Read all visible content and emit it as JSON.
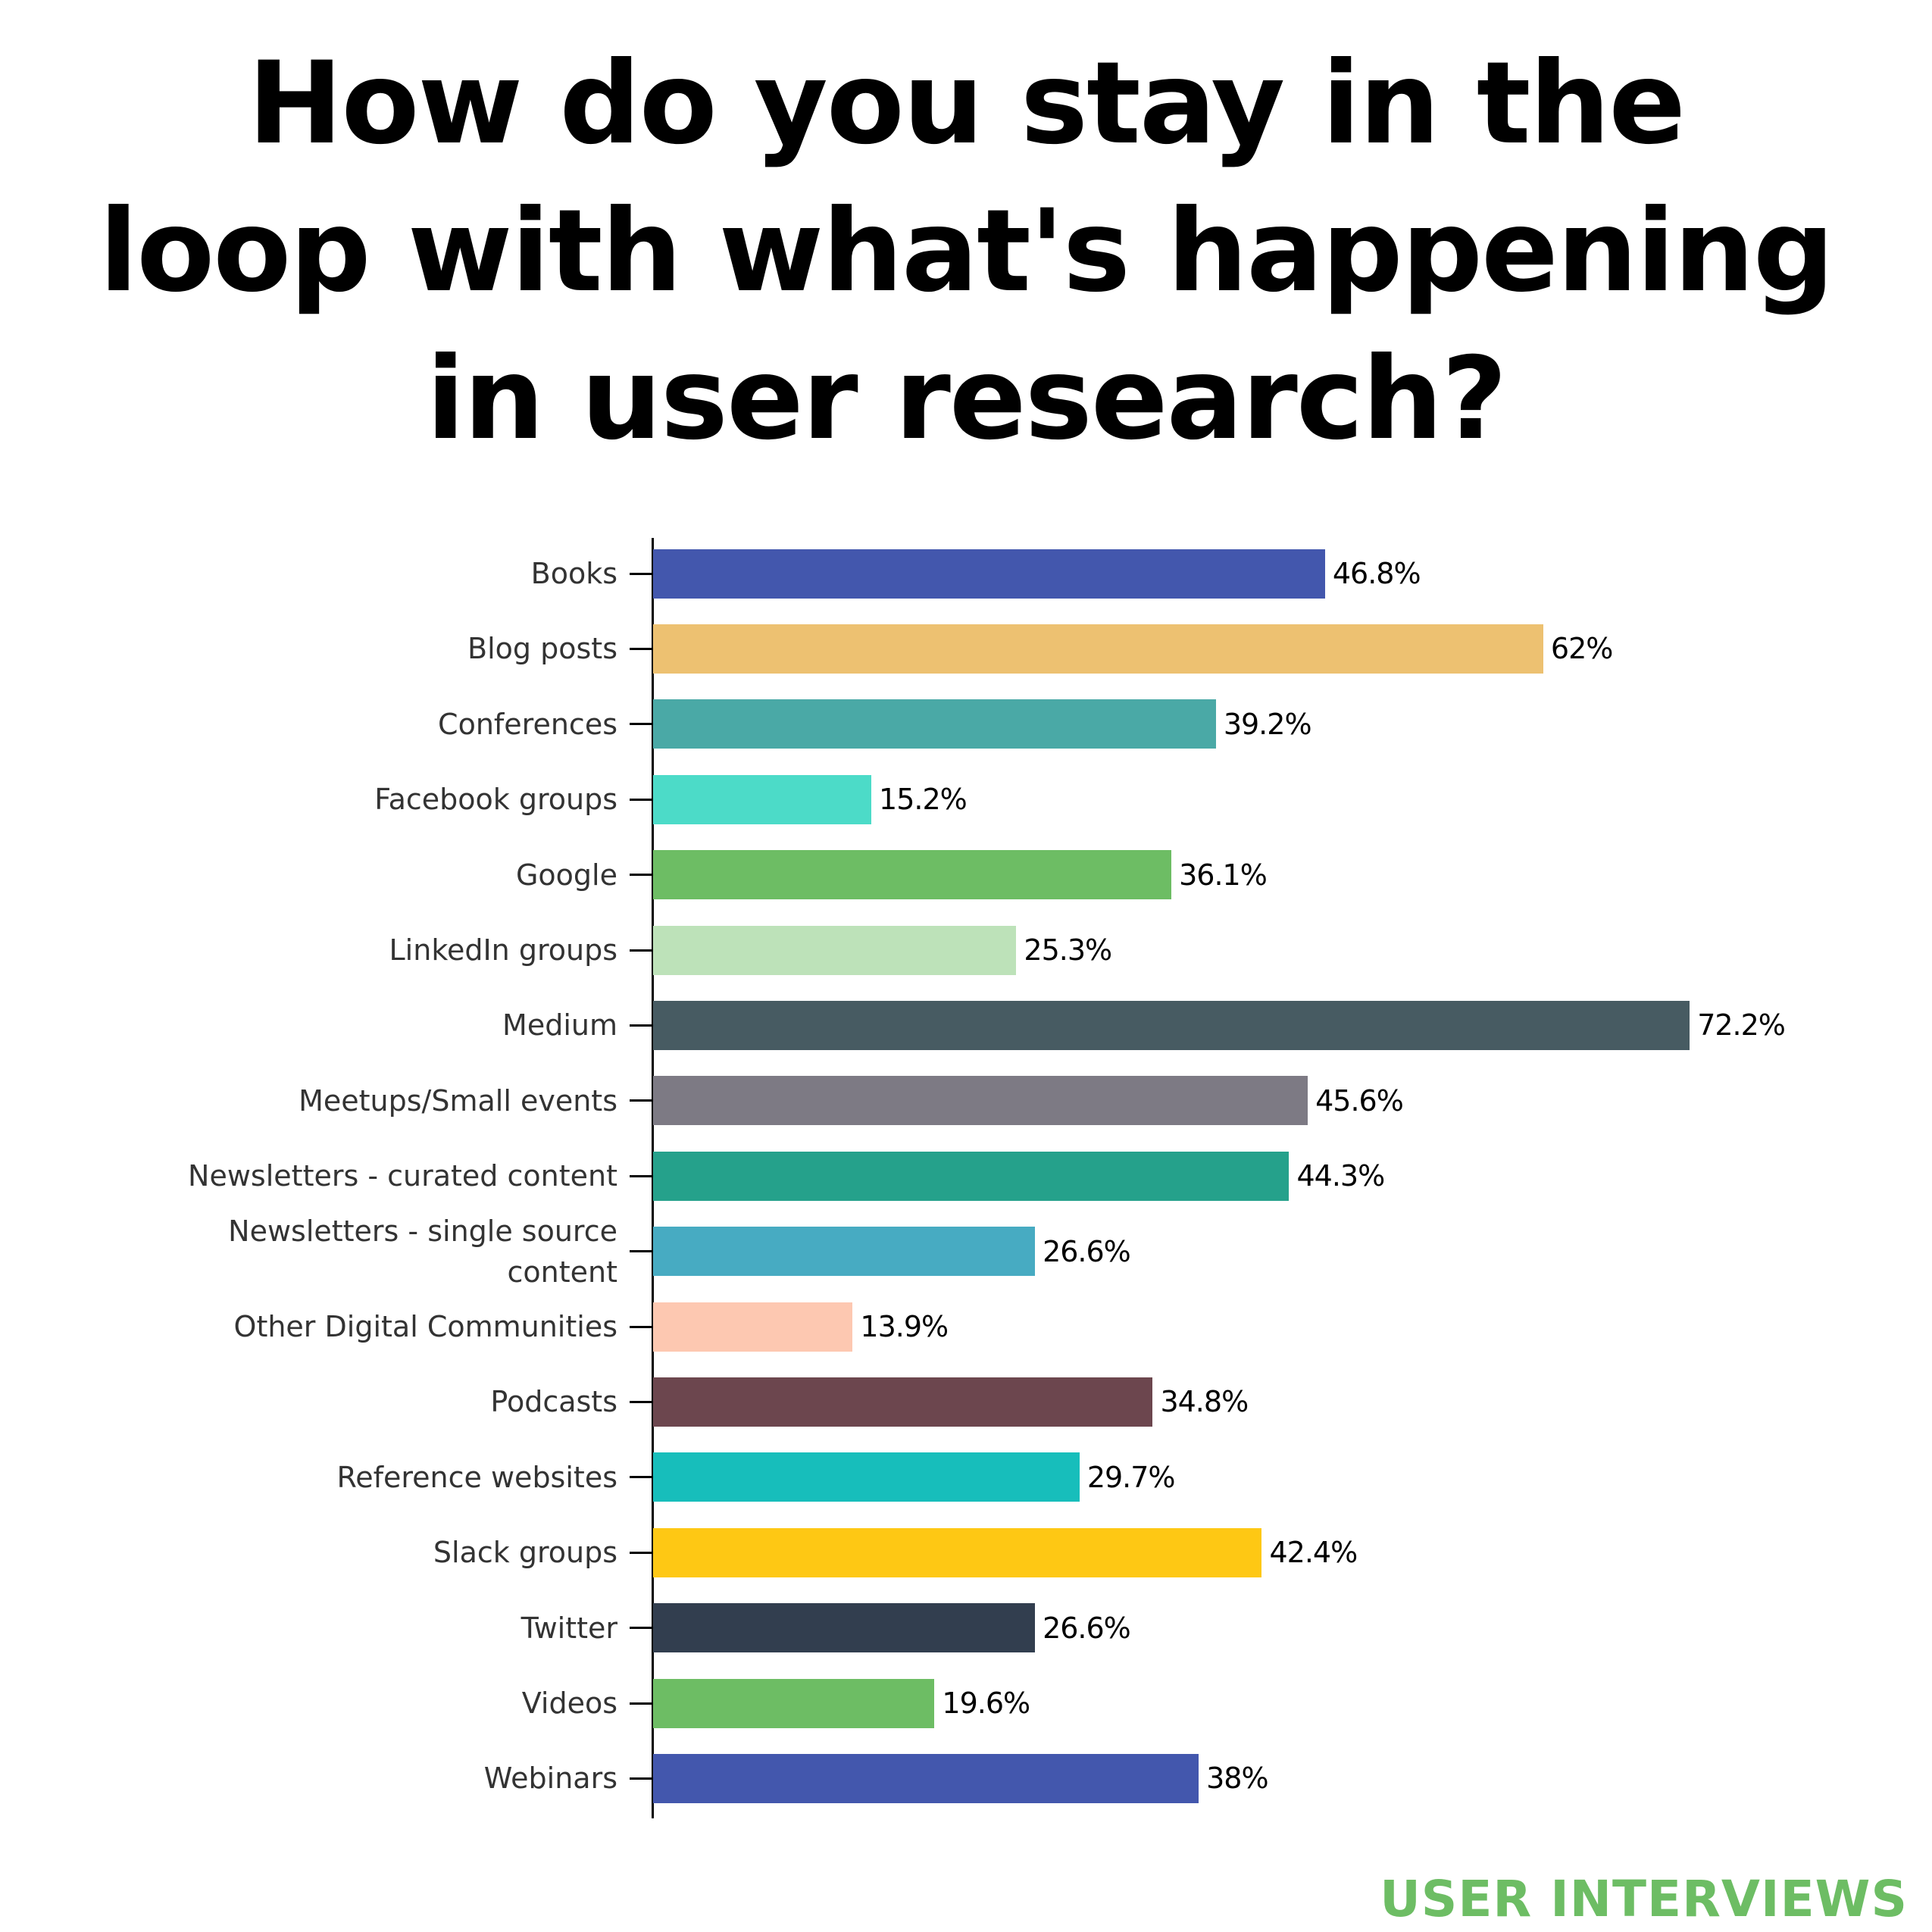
{
  "title": {
    "lines": [
      "How do you stay in the",
      "loop with what's happening",
      "in user research?"
    ]
  },
  "brand": "USER INTERVIEWS",
  "chart_data": {
    "type": "bar",
    "orientation": "horizontal",
    "title": "How do you stay in the loop with what's happening in user research?",
    "xlabel": "",
    "ylabel": "",
    "grid": false,
    "legend": null,
    "categories": [
      "Books",
      "Blog posts",
      "Conferences",
      "Facebook groups",
      "Google",
      "LinkedIn groups",
      "Medium",
      "Meetups/Small events",
      "Newsletters - curated content",
      "Newsletters - single source content",
      "Other Digital Communities",
      "Podcasts",
      "Reference websites",
      "Slack groups",
      "Twitter",
      "Videos",
      "Webinars"
    ],
    "values": [
      46.8,
      62,
      39.2,
      15.2,
      36.1,
      25.3,
      72.2,
      45.6,
      44.3,
      26.6,
      13.9,
      34.8,
      29.7,
      42.4,
      26.6,
      19.6,
      38
    ],
    "value_labels": [
      "46.8%",
      "62%",
      "39.2%",
      "15.2%",
      "36.1%",
      "25.3%",
      "72.2%",
      "45.6%",
      "44.3%",
      "26.6%",
      "13.9%",
      "34.8%",
      "29.7%",
      "42.4%",
      "26.6%",
      "19.6%",
      "38%"
    ],
    "colors": [
      "#4357ad",
      "#edc171",
      "#4aa9a6",
      "#4cdbc8",
      "#6dbd64",
      "#bde2b9",
      "#475b62",
      "#7d7a84",
      "#25a18b",
      "#47abc2",
      "#fdc8b1",
      "#6c464e",
      "#17bebb",
      "#fec814",
      "#323e4f",
      "#6dbd64",
      "#4357ad"
    ],
    "unit": "%"
  },
  "rows": [
    {
      "label": "Books",
      "value": 46.8,
      "display": "46.8%",
      "color": "#4357ad"
    },
    {
      "label": "Blog posts",
      "value": 62,
      "display": "62%",
      "color": "#edc171"
    },
    {
      "label": "Conferences",
      "value": 39.2,
      "display": "39.2%",
      "color": "#4aa9a6"
    },
    {
      "label": "Facebook groups",
      "value": 15.2,
      "display": "15.2%",
      "color": "#4cdbc8"
    },
    {
      "label": "Google",
      "value": 36.1,
      "display": "36.1%",
      "color": "#6dbd64"
    },
    {
      "label": "LinkedIn groups",
      "value": 25.3,
      "display": "25.3%",
      "color": "#bde2b9"
    },
    {
      "label": "Medium",
      "value": 72.2,
      "display": "72.2%",
      "color": "#475b62"
    },
    {
      "label": "Meetups/Small events",
      "value": 45.6,
      "display": "45.6%",
      "color": "#7d7a84"
    },
    {
      "label": "Newsletters - curated content",
      "value": 44.3,
      "display": "44.3%",
      "color": "#25a18b"
    },
    {
      "label": "Newsletters - single source\ncontent",
      "value": 26.6,
      "display": "26.6%",
      "color": "#47abc2"
    },
    {
      "label": "Other Digital Communities",
      "value": 13.9,
      "display": "13.9%",
      "color": "#fdc8b1"
    },
    {
      "label": "Podcasts",
      "value": 34.8,
      "display": "34.8%",
      "color": "#6c464e"
    },
    {
      "label": "Reference websites",
      "value": 29.7,
      "display": "29.7%",
      "color": "#17bebb"
    },
    {
      "label": "Slack groups",
      "value": 42.4,
      "display": "42.4%",
      "color": "#fec814"
    },
    {
      "label": "Twitter",
      "value": 26.6,
      "display": "26.6%",
      "color": "#323e4f"
    },
    {
      "label": "Videos",
      "value": 19.6,
      "display": "19.6%",
      "color": "#6dbd64"
    },
    {
      "label": "Webinars",
      "value": 38,
      "display": "38%",
      "color": "#4357ad"
    }
  ]
}
